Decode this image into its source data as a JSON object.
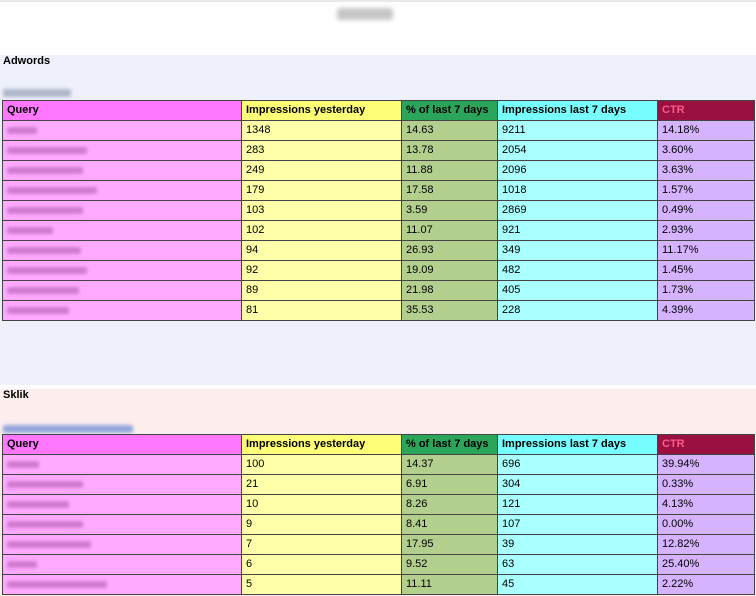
{
  "page": {
    "title_blurred": ""
  },
  "columns": {
    "query": "Query",
    "impressions_yesterday": "Impressions yesterday",
    "pct_last_7_days": "% of last 7 days",
    "impressions_last_7_days": "Impressions last 7 days",
    "ctr": "CTR"
  },
  "adwords": {
    "title": "Adwords",
    "rows": [
      {
        "query": "",
        "impressions_yesterday": "1348",
        "pct_last_7_days": "14.63",
        "impressions_last_7_days": "9211",
        "ctr": "14.18%"
      },
      {
        "query": "",
        "impressions_yesterday": "283",
        "pct_last_7_days": "13.78",
        "impressions_last_7_days": "2054",
        "ctr": "3.60%"
      },
      {
        "query": "",
        "impressions_yesterday": "249",
        "pct_last_7_days": "11.88",
        "impressions_last_7_days": "2096",
        "ctr": "3.63%"
      },
      {
        "query": "",
        "impressions_yesterday": "179",
        "pct_last_7_days": "17.58",
        "impressions_last_7_days": "1018",
        "ctr": "1.57%"
      },
      {
        "query": "",
        "impressions_yesterday": "103",
        "pct_last_7_days": "3.59",
        "impressions_last_7_days": "2869",
        "ctr": "0.49%"
      },
      {
        "query": "",
        "impressions_yesterday": "102",
        "pct_last_7_days": "11.07",
        "impressions_last_7_days": "921",
        "ctr": "2.93%"
      },
      {
        "query": "",
        "impressions_yesterday": "94",
        "pct_last_7_days": "26.93",
        "impressions_last_7_days": "349",
        "ctr": "11.17%"
      },
      {
        "query": "",
        "impressions_yesterday": "92",
        "pct_last_7_days": "19.09",
        "impressions_last_7_days": "482",
        "ctr": "1.45%"
      },
      {
        "query": "",
        "impressions_yesterday": "89",
        "pct_last_7_days": "21.98",
        "impressions_last_7_days": "405",
        "ctr": "1.73%"
      },
      {
        "query": "",
        "impressions_yesterday": "81",
        "pct_last_7_days": "35.53",
        "impressions_last_7_days": "228",
        "ctr": "4.39%"
      }
    ]
  },
  "sklik": {
    "title": "Sklik",
    "rows": [
      {
        "query": "",
        "impressions_yesterday": "100",
        "pct_last_7_days": "14.37",
        "impressions_last_7_days": "696",
        "ctr": "39.94%"
      },
      {
        "query": "",
        "impressions_yesterday": "21",
        "pct_last_7_days": "6.91",
        "impressions_last_7_days": "304",
        "ctr": "0.33%"
      },
      {
        "query": "",
        "impressions_yesterday": "10",
        "pct_last_7_days": "8.26",
        "impressions_last_7_days": "121",
        "ctr": "4.13%"
      },
      {
        "query": "",
        "impressions_yesterday": "9",
        "pct_last_7_days": "8.41",
        "impressions_last_7_days": "107",
        "ctr": "0.00%"
      },
      {
        "query": "",
        "impressions_yesterday": "7",
        "pct_last_7_days": "17.95",
        "impressions_last_7_days": "39",
        "ctr": "12.82%"
      },
      {
        "query": "",
        "impressions_yesterday": "6",
        "pct_last_7_days": "9.52",
        "impressions_last_7_days": "63",
        "ctr": "25.40%"
      },
      {
        "query": "",
        "impressions_yesterday": "5",
        "pct_last_7_days": "11.11",
        "impressions_last_7_days": "45",
        "ctr": "2.22%"
      }
    ]
  },
  "colors": {
    "query_header": "#ff77ff",
    "query_cell": "#ffaaff",
    "impressions_yesterday_header": "#ffff77",
    "impressions_yesterday_cell": "#ffffaa",
    "pct_header": "#2ba55a",
    "pct_cell": "#b3cf8e",
    "impressions_7_header": "#77ffff",
    "impressions_7_cell": "#aaffff",
    "ctr_header": "#9a1040",
    "ctr_cell": "#d6b3ff",
    "adwords_section_bg": "#eef0fb",
    "sklik_section_bg": "#fdeeed"
  }
}
